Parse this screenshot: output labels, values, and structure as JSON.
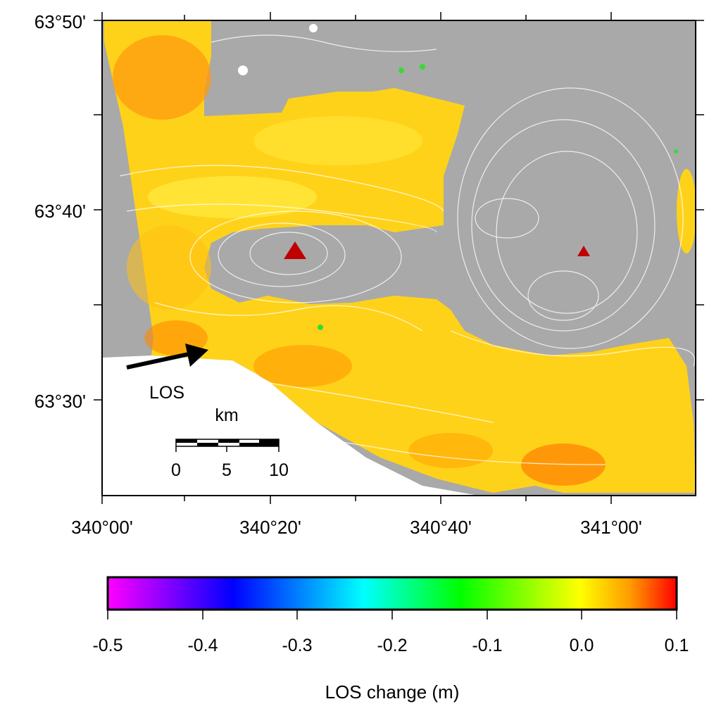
{
  "map": {
    "lat_labels": [
      "63°50'",
      "63°40'",
      "63°30'"
    ],
    "lon_labels": [
      "340°00'",
      "340°20'",
      "340°40'",
      "341°00'"
    ],
    "arrow_label": "LOS",
    "scale_bar": {
      "unit": "km",
      "tick_labels": [
        "0",
        "5",
        "10"
      ]
    },
    "volcano_marker_color": "#c00000",
    "no_data_color": "#a9a9a9"
  },
  "colorbar": {
    "title": "LOS change (m)",
    "tick_labels": [
      "-0.5",
      "-0.4",
      "-0.3",
      "-0.2",
      "-0.1",
      "0.0",
      "0.1"
    ],
    "range": [
      -0.5,
      0.1
    ],
    "colors": [
      "#ff00ff",
      "#0000ff",
      "#00ffff",
      "#00ff00",
      "#ffff00",
      "#ff9900",
      "#ff0000"
    ]
  }
}
